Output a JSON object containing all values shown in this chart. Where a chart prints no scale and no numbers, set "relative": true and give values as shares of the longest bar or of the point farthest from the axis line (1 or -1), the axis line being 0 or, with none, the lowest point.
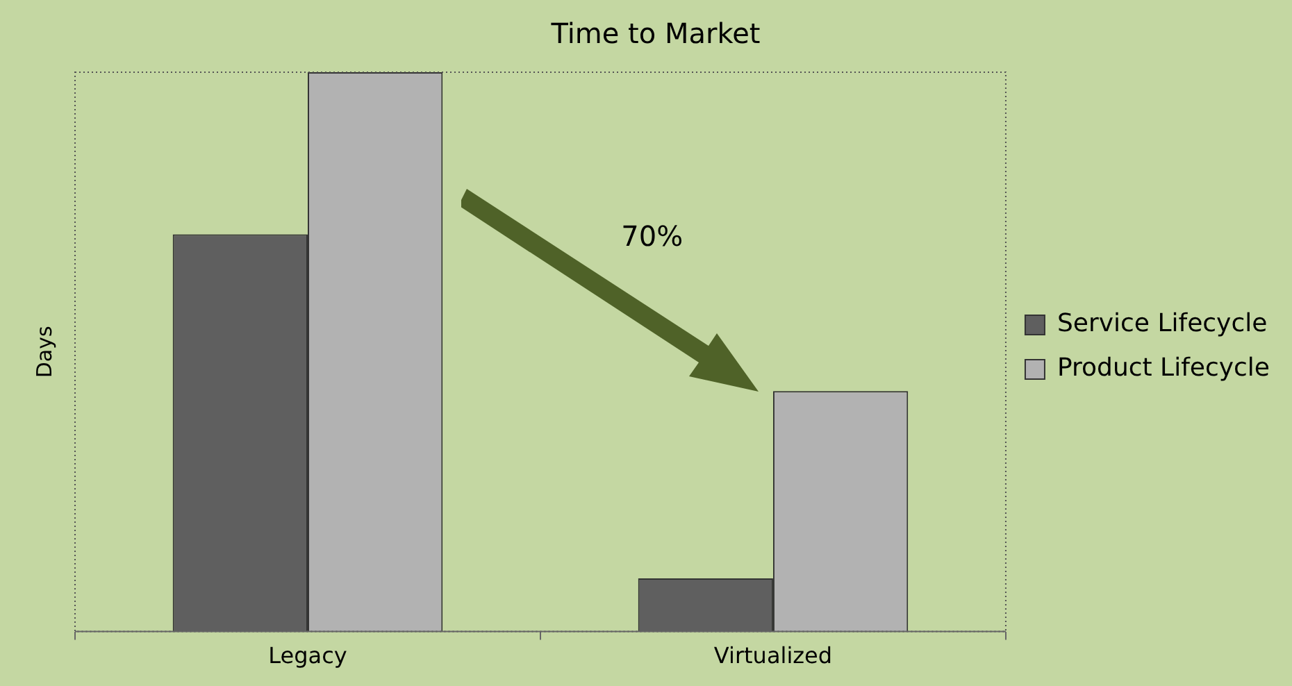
{
  "chart_data": {
    "type": "bar",
    "title": "Time to Market",
    "ylabel": "Days",
    "categories": [
      "Legacy",
      "Virtualized"
    ],
    "series": [
      {
        "name": "Service Lifecycle",
        "color": "#5f5f5f",
        "values": [
          0.71,
          0.095
        ]
      },
      {
        "name": "Product Lifecycle",
        "color": "#b2b2b2",
        "values": [
          1,
          0.43
        ]
      }
    ],
    "relative": true,
    "legend": "right",
    "grid": false,
    "annotations": [
      "70%"
    ]
  }
}
